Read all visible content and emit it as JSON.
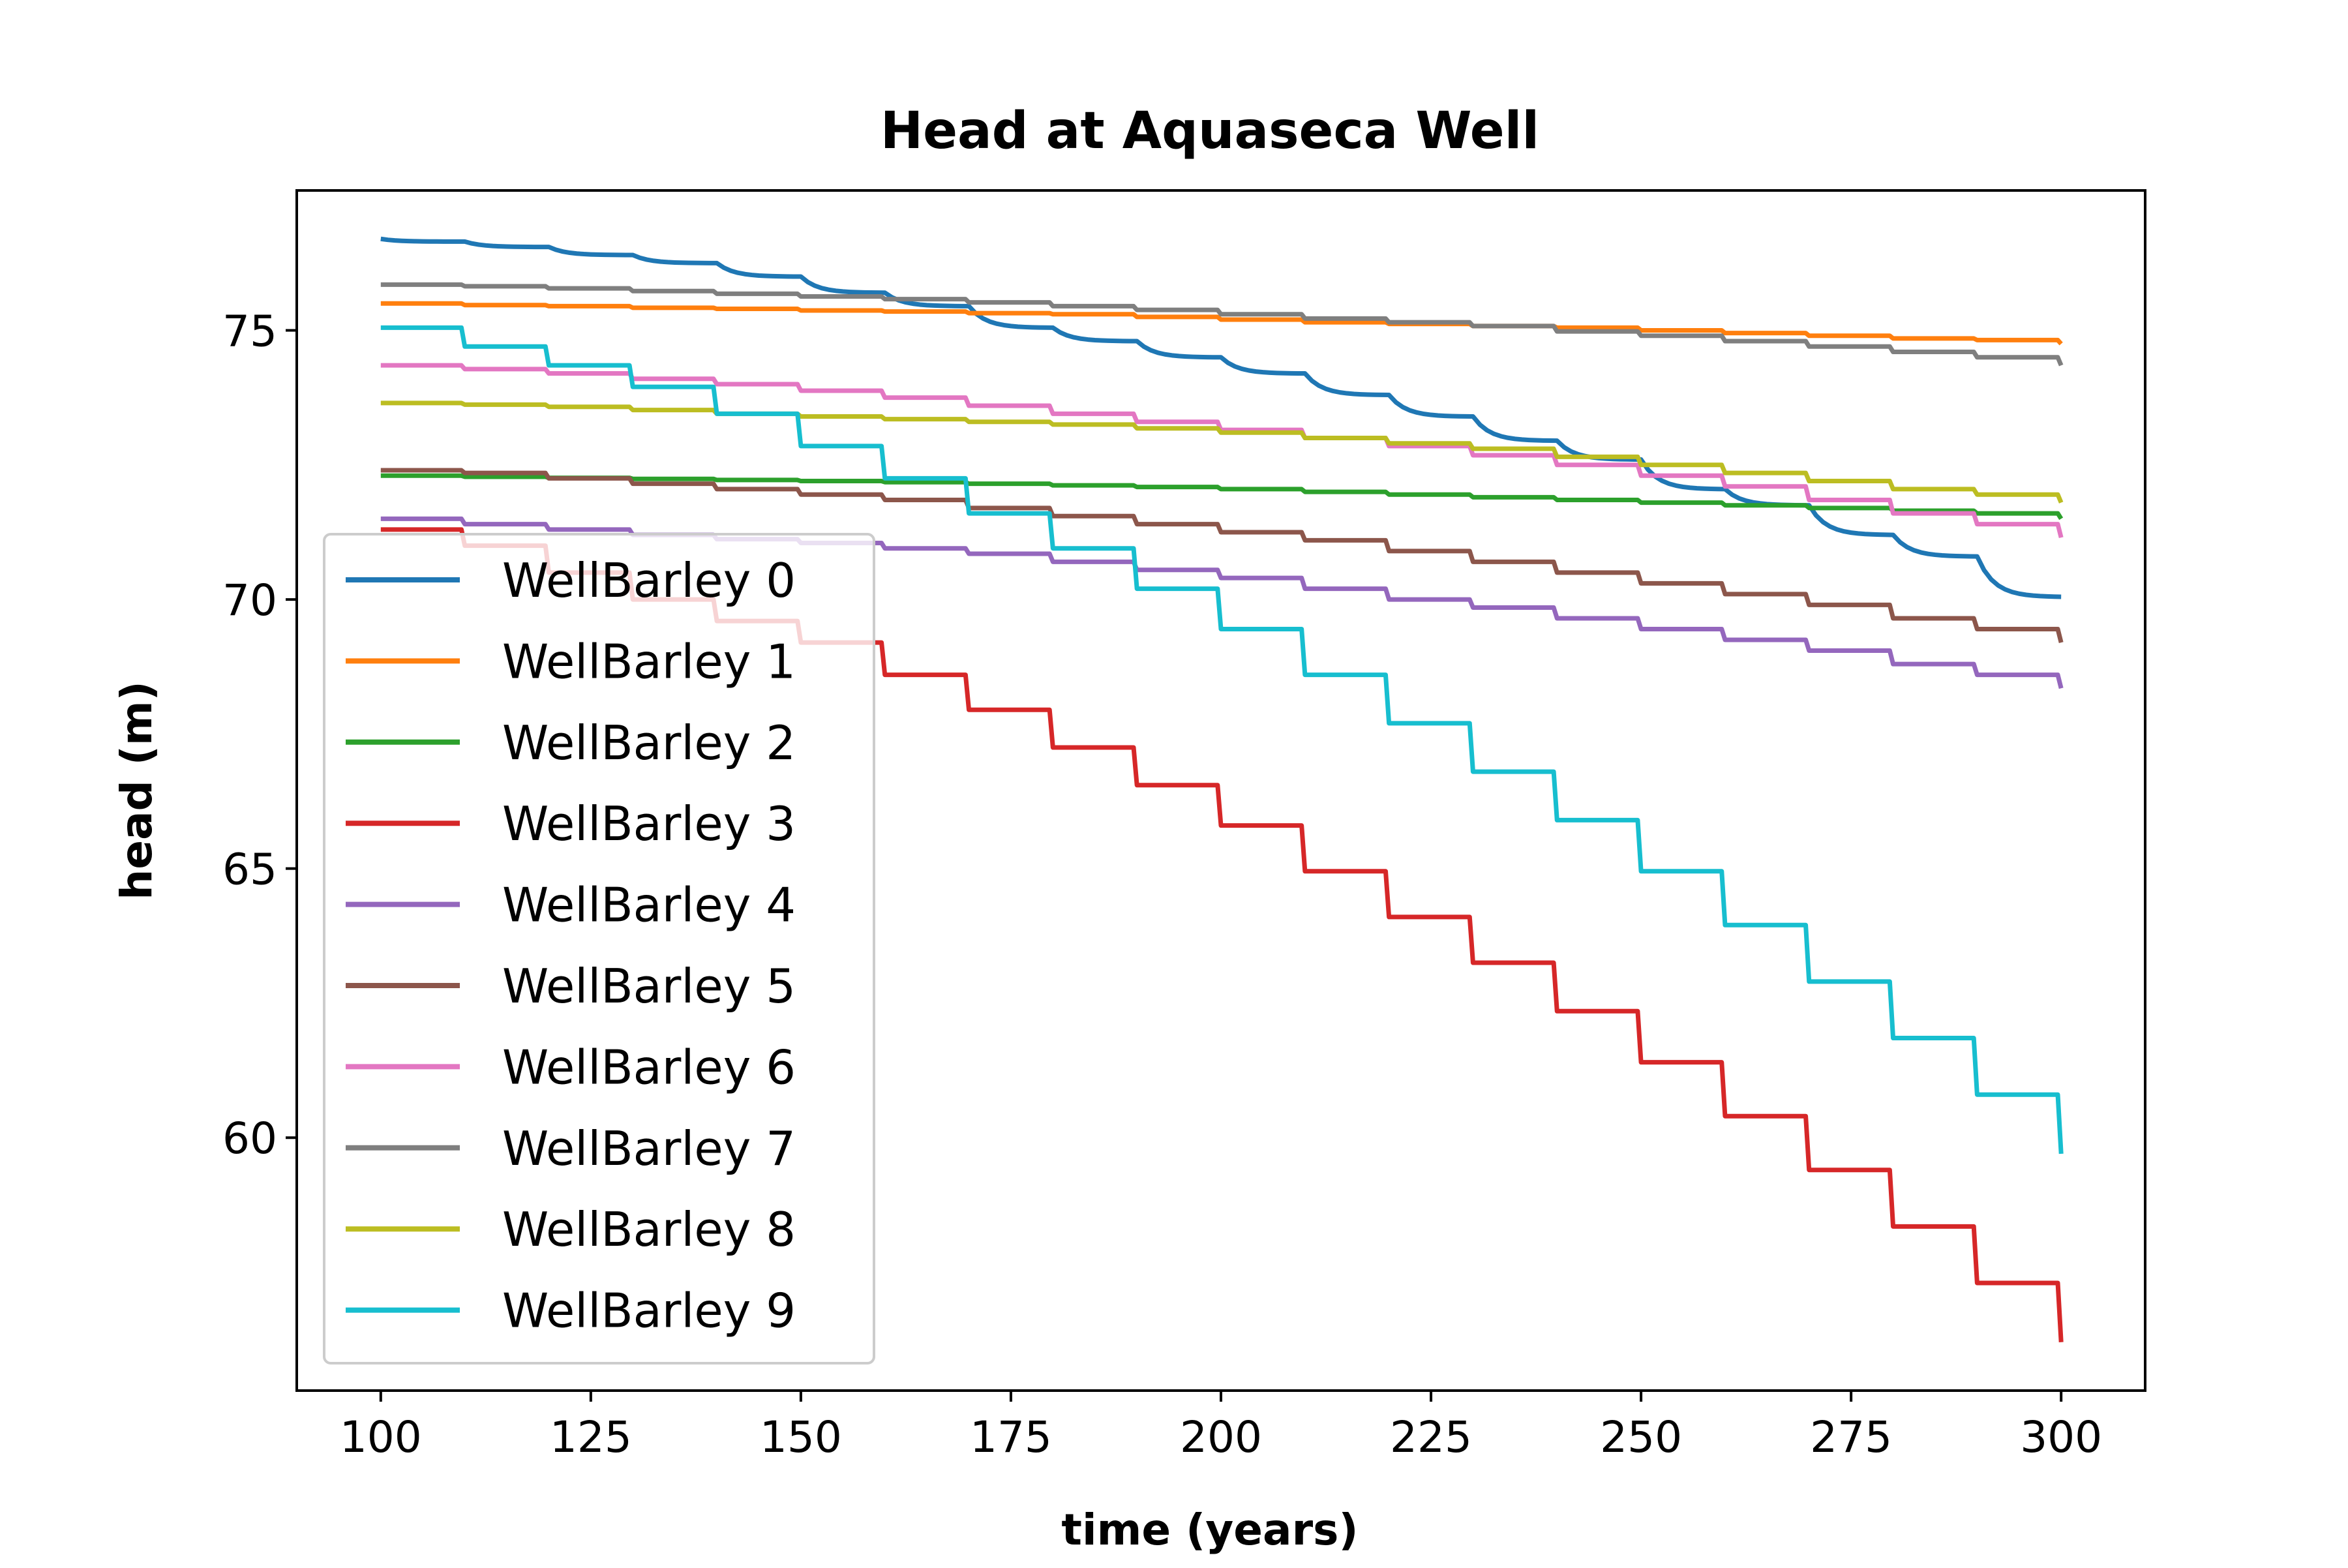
{
  "chart_data": {
    "type": "line",
    "title": "Head at Aquaseca Well",
    "xlabel": "time (years)",
    "ylabel": "head (m)",
    "xlim": [
      90,
      310
    ],
    "ylim": [
      55.3,
      77.6
    ],
    "xticks": [
      100,
      125,
      150,
      175,
      200,
      225,
      250,
      275,
      300
    ],
    "yticks": [
      60,
      65,
      70,
      75
    ],
    "xtick_labels": [
      "100",
      "125",
      "150",
      "175",
      "200",
      "225",
      "250",
      "275",
      "300"
    ],
    "ytick_labels": [
      "60",
      "65",
      "70",
      "75"
    ],
    "grid": false,
    "legend_position": "lower-left",
    "step_interval": 10,
    "x": [
      100,
      110,
      120,
      130,
      140,
      150,
      160,
      170,
      180,
      190,
      200,
      210,
      220,
      230,
      240,
      250,
      260,
      270,
      280,
      290,
      300
    ],
    "series": [
      {
        "name": "WellBarley 0",
        "color": "#1f77b4",
        "shape": "curve",
        "values": [
          76.7,
          76.65,
          76.55,
          76.4,
          76.25,
          76.0,
          75.7,
          75.45,
          75.05,
          74.8,
          74.5,
          74.2,
          73.8,
          73.4,
          72.95,
          72.6,
          72.05,
          71.75,
          71.2,
          70.8,
          70.05
        ]
      },
      {
        "name": "WellBarley 1",
        "color": "#ff7f0e",
        "shape": "step",
        "values": [
          75.5,
          75.47,
          75.45,
          75.42,
          75.4,
          75.37,
          75.35,
          75.32,
          75.3,
          75.25,
          75.2,
          75.15,
          75.12,
          75.08,
          75.05,
          75.0,
          74.95,
          74.9,
          74.85,
          74.82,
          74.75
        ]
      },
      {
        "name": "WellBarley 2",
        "color": "#2ca02c",
        "shape": "step",
        "values": [
          72.3,
          72.28,
          72.26,
          72.24,
          72.22,
          72.2,
          72.18,
          72.15,
          72.12,
          72.09,
          72.05,
          72.0,
          71.95,
          71.9,
          71.85,
          71.8,
          71.75,
          71.7,
          71.65,
          71.6,
          71.5
        ]
      },
      {
        "name": "WellBarley 3",
        "color": "#d62728",
        "shape": "step",
        "values": [
          71.3,
          71.0,
          70.5,
          70.0,
          69.6,
          69.2,
          68.6,
          67.95,
          67.25,
          66.55,
          65.8,
          64.95,
          64.1,
          63.25,
          62.35,
          61.4,
          60.4,
          59.4,
          58.35,
          57.3,
          56.2
        ]
      },
      {
        "name": "WellBarley 4",
        "color": "#9467bd",
        "shape": "step",
        "values": [
          71.5,
          71.4,
          71.3,
          71.2,
          71.12,
          71.05,
          70.95,
          70.85,
          70.7,
          70.55,
          70.4,
          70.2,
          70.0,
          69.85,
          69.65,
          69.45,
          69.25,
          69.05,
          68.8,
          68.6,
          68.35
        ]
      },
      {
        "name": "WellBarley 5",
        "color": "#8c564b",
        "shape": "step",
        "values": [
          72.4,
          72.35,
          72.25,
          72.15,
          72.05,
          71.95,
          71.85,
          71.7,
          71.55,
          71.4,
          71.25,
          71.1,
          70.9,
          70.7,
          70.5,
          70.3,
          70.1,
          69.9,
          69.65,
          69.45,
          69.2
        ]
      },
      {
        "name": "WellBarley 6",
        "color": "#e377c2",
        "shape": "step",
        "values": [
          74.35,
          74.28,
          74.2,
          74.1,
          74.0,
          73.88,
          73.75,
          73.6,
          73.45,
          73.3,
          73.15,
          73.0,
          72.85,
          72.68,
          72.5,
          72.3,
          72.1,
          71.85,
          71.6,
          71.4,
          71.15
        ]
      },
      {
        "name": "WellBarley 7",
        "color": "#7f7f7f",
        "shape": "step",
        "values": [
          75.85,
          75.82,
          75.78,
          75.73,
          75.68,
          75.63,
          75.58,
          75.52,
          75.45,
          75.38,
          75.3,
          75.22,
          75.15,
          75.08,
          74.98,
          74.9,
          74.8,
          74.7,
          74.6,
          74.5,
          74.35
        ]
      },
      {
        "name": "WellBarley 8",
        "color": "#bcbd22",
        "shape": "step",
        "values": [
          73.65,
          73.62,
          73.58,
          73.52,
          73.45,
          73.4,
          73.35,
          73.3,
          73.25,
          73.18,
          73.1,
          73.0,
          72.9,
          72.8,
          72.65,
          72.5,
          72.35,
          72.2,
          72.05,
          71.95,
          71.8
        ]
      },
      {
        "name": "WellBarley 9",
        "color": "#17becf",
        "shape": "step",
        "values": [
          75.05,
          74.7,
          74.35,
          73.95,
          73.45,
          72.85,
          72.25,
          71.6,
          70.95,
          70.2,
          69.45,
          68.6,
          67.7,
          66.8,
          65.9,
          64.95,
          63.95,
          62.9,
          61.85,
          60.8,
          59.7
        ]
      }
    ]
  }
}
